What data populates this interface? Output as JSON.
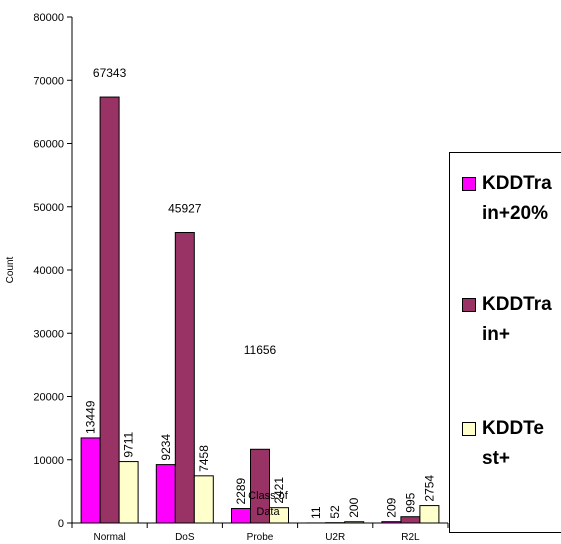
{
  "chart_data": {
    "type": "bar",
    "categories": [
      "Normal",
      "DoS",
      "Probe",
      "U2R",
      "R2L"
    ],
    "series": [
      {
        "name": "KDDTrain+20%",
        "color": "#ff00ff",
        "values": [
          13449,
          9234,
          2289,
          11,
          209
        ]
      },
      {
        "name": "KDDTrain+",
        "color": "#993366",
        "values": [
          67343,
          45927,
          11656,
          52,
          995
        ]
      },
      {
        "name": "KDDTest+",
        "color": "#ffffcc",
        "values": [
          9711,
          7458,
          2421,
          200,
          2754
        ]
      }
    ],
    "xlabel": "Class of Data",
    "ylabel": "Count",
    "ylim": [
      0,
      80000
    ],
    "yticks": [
      "0",
      "10000",
      "20000",
      "30000",
      "40000",
      "50000",
      "60000",
      "70000",
      "80000"
    ],
    "grid": false,
    "legend_position": "right"
  }
}
